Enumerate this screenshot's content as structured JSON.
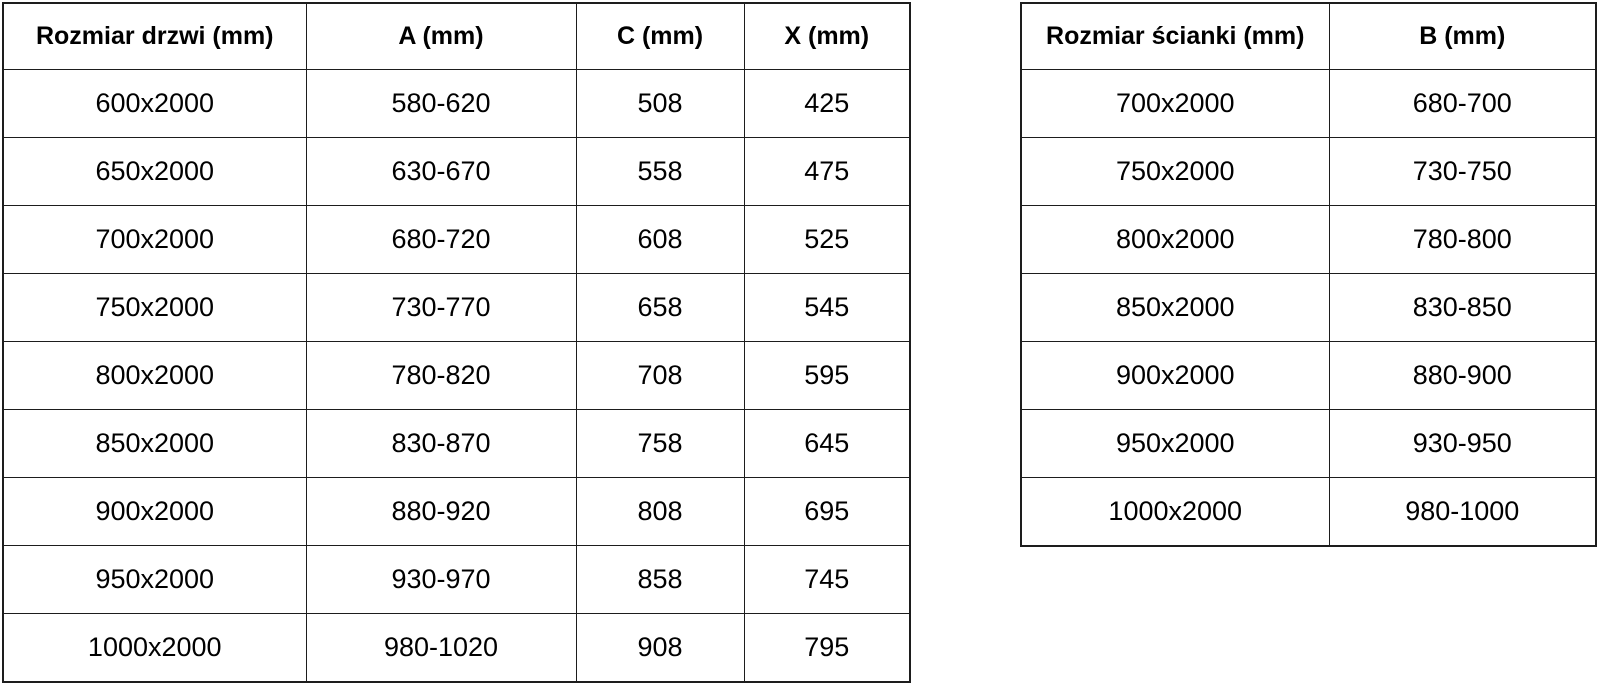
{
  "left_table": {
    "headers": [
      "Rozmiar drzwi (mm)",
      "A (mm)",
      "C (mm)",
      "X (mm)"
    ],
    "rows": [
      [
        "600x2000",
        "580-620",
        "508",
        "425"
      ],
      [
        "650x2000",
        "630-670",
        "558",
        "475"
      ],
      [
        "700x2000",
        "680-720",
        "608",
        "525"
      ],
      [
        "750x2000",
        "730-770",
        "658",
        "545"
      ],
      [
        "800x2000",
        "780-820",
        "708",
        "595"
      ],
      [
        "850x2000",
        "830-870",
        "758",
        "645"
      ],
      [
        "900x2000",
        "880-920",
        "808",
        "695"
      ],
      [
        "950x2000",
        "930-970",
        "858",
        "745"
      ],
      [
        "1000x2000",
        "980-1020",
        "908",
        "795"
      ]
    ]
  },
  "right_table": {
    "headers": [
      "Rozmiar ścianki (mm)",
      "B (mm)"
    ],
    "rows": [
      [
        "700x2000",
        "680-700"
      ],
      [
        "750x2000",
        "730-750"
      ],
      [
        "800x2000",
        "780-800"
      ],
      [
        "850x2000",
        "830-850"
      ],
      [
        "900x2000",
        "880-900"
      ],
      [
        "950x2000",
        "930-950"
      ],
      [
        "1000x2000",
        "980-1000"
      ]
    ]
  },
  "colors": {
    "background": "#ffffff",
    "border": "#1d1d1d",
    "text": "#000000"
  }
}
